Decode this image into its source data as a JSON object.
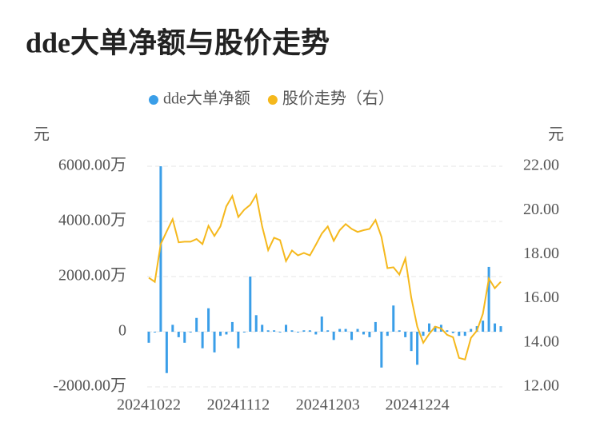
{
  "chart_data": {
    "type": "bar",
    "title": "dde大单净额与股价走势",
    "y_label": "元",
    "y2_label": "元",
    "categories": [
      "20241022",
      null,
      null,
      null,
      null,
      null,
      null,
      null,
      null,
      null,
      null,
      null,
      null,
      null,
      null,
      "20241112",
      null,
      null,
      null,
      null,
      null,
      null,
      null,
      null,
      null,
      null,
      null,
      null,
      null,
      null,
      "20241203",
      null,
      null,
      null,
      null,
      null,
      null,
      null,
      null,
      null,
      null,
      null,
      null,
      null,
      null,
      "20241224",
      null,
      null,
      null,
      null,
      null,
      null,
      null,
      null,
      null,
      null,
      null,
      null,
      null,
      null
    ],
    "series": [
      {
        "name": "dde大单净额",
        "color": "#3a9ee8",
        "values": [
          -400,
          0,
          6000,
          -1500,
          250,
          -200,
          -400,
          0,
          500,
          -600,
          850,
          -750,
          -150,
          -100,
          350,
          -600,
          0,
          2000,
          600,
          250,
          50,
          50,
          0,
          250,
          50,
          0,
          50,
          50,
          -100,
          550,
          50,
          -300,
          100,
          100,
          -300,
          100,
          -100,
          -200,
          350,
          -1300,
          -150,
          950,
          50,
          -200,
          -700,
          -1200,
          -150,
          300,
          200,
          250,
          50,
          -50,
          -150,
          -150,
          100,
          200,
          400,
          2350,
          300,
          200
        ]
      },
      {
        "name": "股价走势（右）",
        "color": "#f5b81c",
        "type": "line",
        "axis": "y2",
        "values": [
          16.95,
          16.76,
          18.47,
          19.05,
          19.6,
          18.55,
          18.58,
          18.58,
          18.7,
          18.47,
          19.3,
          18.84,
          19.27,
          20.18,
          20.65,
          19.7,
          20.03,
          20.25,
          20.7,
          19.27,
          18.2,
          18.76,
          18.65,
          17.7,
          18.18,
          17.96,
          18.07,
          17.96,
          18.44,
          18.95,
          19.27,
          18.62,
          19.1,
          19.38,
          19.16,
          19.02,
          19.1,
          19.16,
          19.56,
          18.8,
          17.38,
          17.42,
          17.09,
          17.82,
          16.04,
          14.73,
          14.0,
          14.4,
          14.73,
          14.65,
          14.36,
          14.25,
          13.31,
          13.24,
          14.22,
          14.55,
          15.31,
          16.91,
          16.47,
          16.76
        ]
      }
    ],
    "ylim": [
      -2000,
      6000
    ],
    "yticks": [
      {
        "value": -2000,
        "label": "-2000.00万"
      },
      0,
      {
        "value": 2000,
        "label": "2000.00万"
      },
      {
        "value": 4000,
        "label": "4000.00万"
      },
      {
        "value": 6000,
        "label": "6000.00万"
      }
    ],
    "y2lim": [
      12,
      22
    ],
    "y2ticks": [
      {
        "value": 12,
        "label": "12.00"
      },
      {
        "value": 14,
        "label": "14.00"
      },
      {
        "value": 16,
        "label": "16.00"
      },
      {
        "value": 18,
        "label": "18.00"
      },
      {
        "value": 20,
        "label": "20.00"
      },
      {
        "value": 22,
        "label": "22.00"
      }
    ],
    "grid": true,
    "legend": "top"
  }
}
